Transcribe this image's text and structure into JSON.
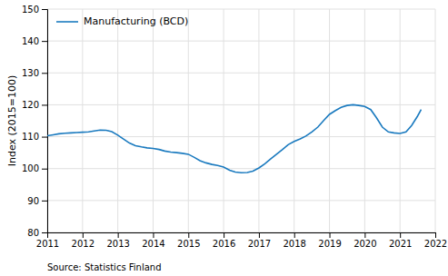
{
  "chart_data": {
    "type": "line",
    "ylabel": "Index (2015=100)",
    "annotations": [
      "Source: Statistics Finland"
    ],
    "x": [
      2011.0,
      2011.17,
      2011.33,
      2011.5,
      2011.67,
      2011.83,
      2012.0,
      2012.17,
      2012.33,
      2012.5,
      2012.67,
      2012.83,
      2013.0,
      2013.17,
      2013.33,
      2013.5,
      2013.67,
      2013.83,
      2014.0,
      2014.17,
      2014.33,
      2014.5,
      2014.67,
      2014.83,
      2015.0,
      2015.17,
      2015.33,
      2015.5,
      2015.67,
      2015.83,
      2016.0,
      2016.17,
      2016.33,
      2016.5,
      2016.67,
      2016.83,
      2017.0,
      2017.17,
      2017.33,
      2017.5,
      2017.67,
      2017.83,
      2018.0,
      2018.17,
      2018.33,
      2018.5,
      2018.67,
      2018.83,
      2019.0,
      2019.17,
      2019.33,
      2019.5,
      2019.67,
      2019.83,
      2020.0,
      2020.17,
      2020.33,
      2020.5,
      2020.67,
      2020.83,
      2021.0,
      2021.17,
      2021.33,
      2021.5,
      2021.6
    ],
    "series": [
      {
        "name": "Manufacturing (BCD)",
        "color": "#1a7abf",
        "values": [
          110.3,
          110.6,
          110.9,
          111.1,
          111.2,
          111.3,
          111.4,
          111.5,
          111.8,
          112.1,
          112.0,
          111.6,
          110.5,
          109.2,
          108.0,
          107.2,
          106.8,
          106.5,
          106.3,
          106.0,
          105.5,
          105.2,
          105.0,
          104.8,
          104.5,
          103.5,
          102.5,
          101.8,
          101.3,
          101.0,
          100.5,
          99.5,
          98.9,
          98.7,
          98.8,
          99.2,
          100.2,
          101.5,
          103.0,
          104.5,
          106.0,
          107.5,
          108.5,
          109.3,
          110.2,
          111.5,
          113.0,
          115.0,
          117.0,
          118.2,
          119.2,
          119.8,
          120.0,
          119.8,
          119.5,
          118.5,
          116.0,
          113.0,
          111.5,
          111.2,
          111.0,
          111.5,
          113.5,
          116.5,
          118.5
        ]
      }
    ],
    "xlim": [
      2011,
      2022
    ],
    "ylim": [
      80,
      150
    ],
    "xticks": [
      2011,
      2012,
      2013,
      2014,
      2015,
      2016,
      2017,
      2018,
      2019,
      2020,
      2021,
      2022
    ],
    "yticks": [
      80,
      90,
      100,
      110,
      120,
      130,
      140,
      150
    ],
    "grid": true,
    "legend": "upper left"
  }
}
